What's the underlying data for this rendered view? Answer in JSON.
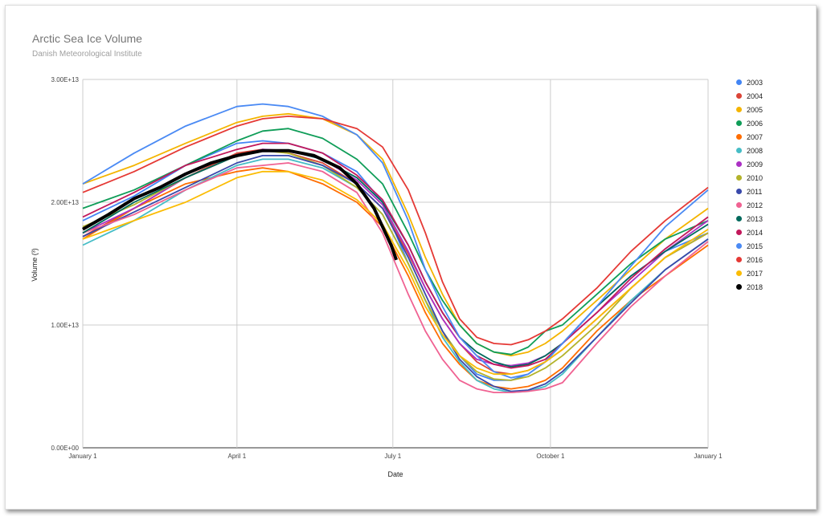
{
  "chart_data": {
    "type": "line",
    "title": "Arctic Sea Ice Volume",
    "subtitle": "Danish Meteorological Institute",
    "xlabel": "Date",
    "ylabel": "Volume (³)",
    "ylim": [
      0,
      30000000000000
    ],
    "xlim": [
      0,
      365
    ],
    "y_ticks": [
      {
        "value": 0,
        "label": "0.00E+00"
      },
      {
        "value": 10000000000000,
        "label": "1.00E+13"
      },
      {
        "value": 20000000000000,
        "label": "2.00E+13"
      },
      {
        "value": 30000000000000,
        "label": "3.00E+13"
      }
    ],
    "x_ticks": [
      {
        "value": 0,
        "label": "January 1"
      },
      {
        "value": 90,
        "label": "April 1"
      },
      {
        "value": 181,
        "label": "July 1"
      },
      {
        "value": 273,
        "label": "October 1"
      },
      {
        "value": 365,
        "label": "January 1"
      }
    ],
    "grid": true,
    "legend_position": "right",
    "series": [
      {
        "name": "2003",
        "color": "#4285f4",
        "x": [
          0,
          30,
          60,
          90,
          105,
          120,
          140,
          160,
          175,
          190,
          200,
          210,
          220,
          230,
          240,
          250,
          260,
          270,
          280,
          300,
          320,
          340,
          365
        ],
        "y": [
          18.5,
          20.5,
          23,
          24.8,
          25,
          24.8,
          24,
          22.5,
          20,
          15,
          12,
          9.5,
          7.5,
          6,
          5.5,
          5.5,
          6,
          7,
          8.5,
          11.5,
          14,
          16,
          17.5
        ]
      },
      {
        "name": "2004",
        "color": "#db4437",
        "x": [
          0,
          30,
          60,
          90,
          105,
          120,
          140,
          160,
          175,
          190,
          200,
          210,
          220,
          230,
          240,
          250,
          260,
          270,
          280,
          300,
          320,
          340,
          365
        ],
        "y": [
          17.2,
          19.5,
          22,
          24,
          24.3,
          24,
          23.2,
          21.5,
          19.5,
          15.8,
          13,
          10.5,
          8.5,
          7,
          6.2,
          6,
          6.3,
          7,
          8,
          10.5,
          13,
          15.5,
          17.5
        ]
      },
      {
        "name": "2005",
        "color": "#f4b400",
        "x": [
          0,
          30,
          60,
          90,
          105,
          120,
          140,
          160,
          175,
          190,
          200,
          210,
          220,
          230,
          240,
          250,
          260,
          270,
          280,
          300,
          320,
          340,
          365
        ],
        "y": [
          21.5,
          23,
          24.8,
          26.5,
          27,
          27.2,
          26.8,
          25.5,
          23.5,
          19,
          15.5,
          12.5,
          10,
          8.5,
          7.8,
          7.5,
          7.8,
          8.5,
          9.5,
          12,
          14.5,
          17,
          19.5
        ]
      },
      {
        "name": "2006",
        "color": "#0f9d58",
        "x": [
          0,
          30,
          60,
          90,
          105,
          120,
          140,
          160,
          175,
          190,
          200,
          210,
          220,
          230,
          240,
          250,
          260,
          270,
          280,
          300,
          320,
          340,
          365
        ],
        "y": [
          19.5,
          21,
          23,
          25,
          25.8,
          26,
          25.2,
          23.5,
          21.5,
          17.5,
          14.5,
          12,
          10,
          8.5,
          7.8,
          7.6,
          8.2,
          9.5,
          10,
          12.5,
          15,
          17,
          18.5
        ]
      },
      {
        "name": "2007",
        "color": "#ff6d00",
        "x": [
          0,
          30,
          60,
          90,
          105,
          120,
          140,
          160,
          175,
          190,
          200,
          210,
          220,
          230,
          240,
          250,
          260,
          270,
          280,
          300,
          320,
          340,
          365
        ],
        "y": [
          17,
          19.5,
          21.5,
          22.5,
          22.8,
          22.5,
          21.5,
          20,
          18,
          14,
          11,
          8.5,
          6.8,
          5.5,
          5,
          4.8,
          5,
          5.5,
          6.5,
          9.5,
          12,
          14,
          16.5
        ]
      },
      {
        "name": "2008",
        "color": "#46bdc6",
        "x": [
          0,
          30,
          60,
          90,
          105,
          120,
          140,
          160,
          175,
          190,
          200,
          210,
          220,
          230,
          240,
          250,
          260,
          270,
          280,
          300,
          320,
          340,
          365
        ],
        "y": [
          16.5,
          18.5,
          21,
          23,
          23.5,
          23.5,
          22.8,
          21.2,
          19,
          15,
          12,
          9,
          7,
          5.5,
          4.8,
          4.5,
          4.6,
          5,
          6,
          9,
          12,
          14.5,
          17
        ]
      },
      {
        "name": "2009",
        "color": "#ab30c4",
        "x": [
          0,
          30,
          60,
          90,
          105,
          120,
          140,
          160,
          175,
          190,
          200,
          210,
          220,
          230,
          240,
          250,
          260,
          270,
          280,
          300,
          320,
          340,
          365
        ],
        "y": [
          17.5,
          19.5,
          22,
          23.8,
          24.3,
          24.2,
          23.5,
          21.8,
          19.8,
          16,
          13,
          10.5,
          8.5,
          7.2,
          6.8,
          6.7,
          6.9,
          7.5,
          8.5,
          11,
          13.5,
          16,
          18.5
        ]
      },
      {
        "name": "2010",
        "color": "#b3b32b",
        "x": [
          0,
          30,
          60,
          90,
          105,
          120,
          140,
          160,
          175,
          190,
          200,
          210,
          220,
          230,
          240,
          250,
          260,
          270,
          280,
          300,
          320,
          340,
          365
        ],
        "y": [
          18,
          19.8,
          22,
          23.8,
          24.2,
          24,
          23,
          21.2,
          19,
          15,
          12,
          9.5,
          7.5,
          6.2,
          5.6,
          5.5,
          5.8,
          6.5,
          7.5,
          10,
          13,
          15.5,
          17.5
        ]
      },
      {
        "name": "2011",
        "color": "#3949ab",
        "x": [
          0,
          30,
          60,
          90,
          105,
          120,
          140,
          160,
          175,
          190,
          200,
          210,
          220,
          230,
          240,
          250,
          260,
          270,
          280,
          300,
          320,
          340,
          365
        ],
        "y": [
          17.2,
          19.2,
          21.2,
          23.2,
          23.8,
          23.8,
          23,
          21.5,
          19.5,
          15.5,
          12.5,
          9.5,
          7.2,
          5.8,
          5,
          4.6,
          4.7,
          5.2,
          6.2,
          9,
          11.8,
          14.5,
          17
        ]
      },
      {
        "name": "2012",
        "color": "#f06292",
        "x": [
          0,
          30,
          60,
          90,
          105,
          120,
          140,
          160,
          175,
          190,
          200,
          210,
          220,
          230,
          240,
          250,
          260,
          270,
          280,
          300,
          320,
          340,
          365
        ],
        "y": [
          17.5,
          19,
          21,
          22.8,
          23,
          23.2,
          22.5,
          20.8,
          17.5,
          12.5,
          9.5,
          7.2,
          5.5,
          4.8,
          4.5,
          4.5,
          4.6,
          4.8,
          5.3,
          8.5,
          11.5,
          14,
          16.8
        ]
      },
      {
        "name": "2013",
        "color": "#00695c",
        "x": [
          0,
          30,
          60,
          90,
          105,
          120,
          140,
          160,
          175,
          190,
          200,
          210,
          220,
          230,
          240,
          250,
          260,
          270,
          280,
          300,
          320,
          340,
          365
        ],
        "y": [
          17.5,
          20,
          22,
          23.8,
          24.2,
          24.2,
          23.5,
          22,
          20,
          16.5,
          13.5,
          11,
          9,
          7.8,
          7,
          6.6,
          6.8,
          7.5,
          8.5,
          11.5,
          14,
          16,
          18.2
        ]
      },
      {
        "name": "2014",
        "color": "#c2185b",
        "x": [
          0,
          30,
          60,
          90,
          105,
          120,
          140,
          160,
          175,
          190,
          200,
          210,
          220,
          230,
          240,
          250,
          260,
          270,
          280,
          300,
          320,
          340,
          365
        ],
        "y": [
          18.8,
          20.8,
          23,
          24.3,
          24.8,
          24.8,
          24,
          22.2,
          20.2,
          16.5,
          13.5,
          11,
          9,
          7.5,
          6.8,
          6.5,
          6.7,
          7.2,
          8.5,
          11,
          13.8,
          16.2,
          18.8
        ]
      },
      {
        "name": "2015",
        "color": "#4a8af4",
        "x": [
          0,
          30,
          60,
          90,
          105,
          120,
          140,
          160,
          175,
          190,
          200,
          210,
          220,
          230,
          240,
          250,
          260,
          270,
          280,
          300,
          320,
          340,
          365
        ],
        "y": [
          21.5,
          24,
          26.2,
          27.8,
          28,
          27.8,
          27,
          25.5,
          23.2,
          18.5,
          14.5,
          11.5,
          9,
          7.5,
          6.2,
          5.7,
          6,
          7,
          8.5,
          11.5,
          14.8,
          18,
          21
        ]
      },
      {
        "name": "2016",
        "color": "#e53935",
        "x": [
          0,
          30,
          60,
          90,
          105,
          120,
          140,
          160,
          175,
          190,
          200,
          210,
          220,
          230,
          240,
          250,
          260,
          270,
          280,
          300,
          320,
          340,
          365
        ],
        "y": [
          20.8,
          22.5,
          24.5,
          26.2,
          26.8,
          27,
          26.8,
          26,
          24.5,
          21,
          17.5,
          13.5,
          10.5,
          9,
          8.5,
          8.4,
          8.8,
          9.5,
          10.5,
          13,
          16,
          18.5,
          21.2
        ]
      },
      {
        "name": "2017",
        "color": "#fbbc04",
        "x": [
          0,
          30,
          60,
          90,
          105,
          120,
          140,
          160,
          175,
          190,
          200,
          210,
          220,
          230,
          240,
          250,
          260,
          270,
          280,
          300,
          320,
          340,
          365
        ],
        "y": [
          17,
          18.5,
          20,
          22,
          22.5,
          22.5,
          21.8,
          20.2,
          18.2,
          14.5,
          11.5,
          9.2,
          7.5,
          6.5,
          6,
          6,
          6.3,
          7,
          8,
          10.5,
          13,
          15.5,
          17.8
        ]
      },
      {
        "name": "2018",
        "color": "#000000",
        "x": [
          0,
          15,
          30,
          45,
          60,
          75,
          90,
          105,
          120,
          135,
          150,
          160,
          170,
          175,
          180,
          183
        ],
        "y": [
          17.8,
          19,
          20.3,
          21.2,
          22.3,
          23.2,
          23.8,
          24.2,
          24.2,
          23.8,
          22.8,
          21.5,
          19.5,
          18,
          16.5,
          15.3
        ]
      }
    ]
  }
}
